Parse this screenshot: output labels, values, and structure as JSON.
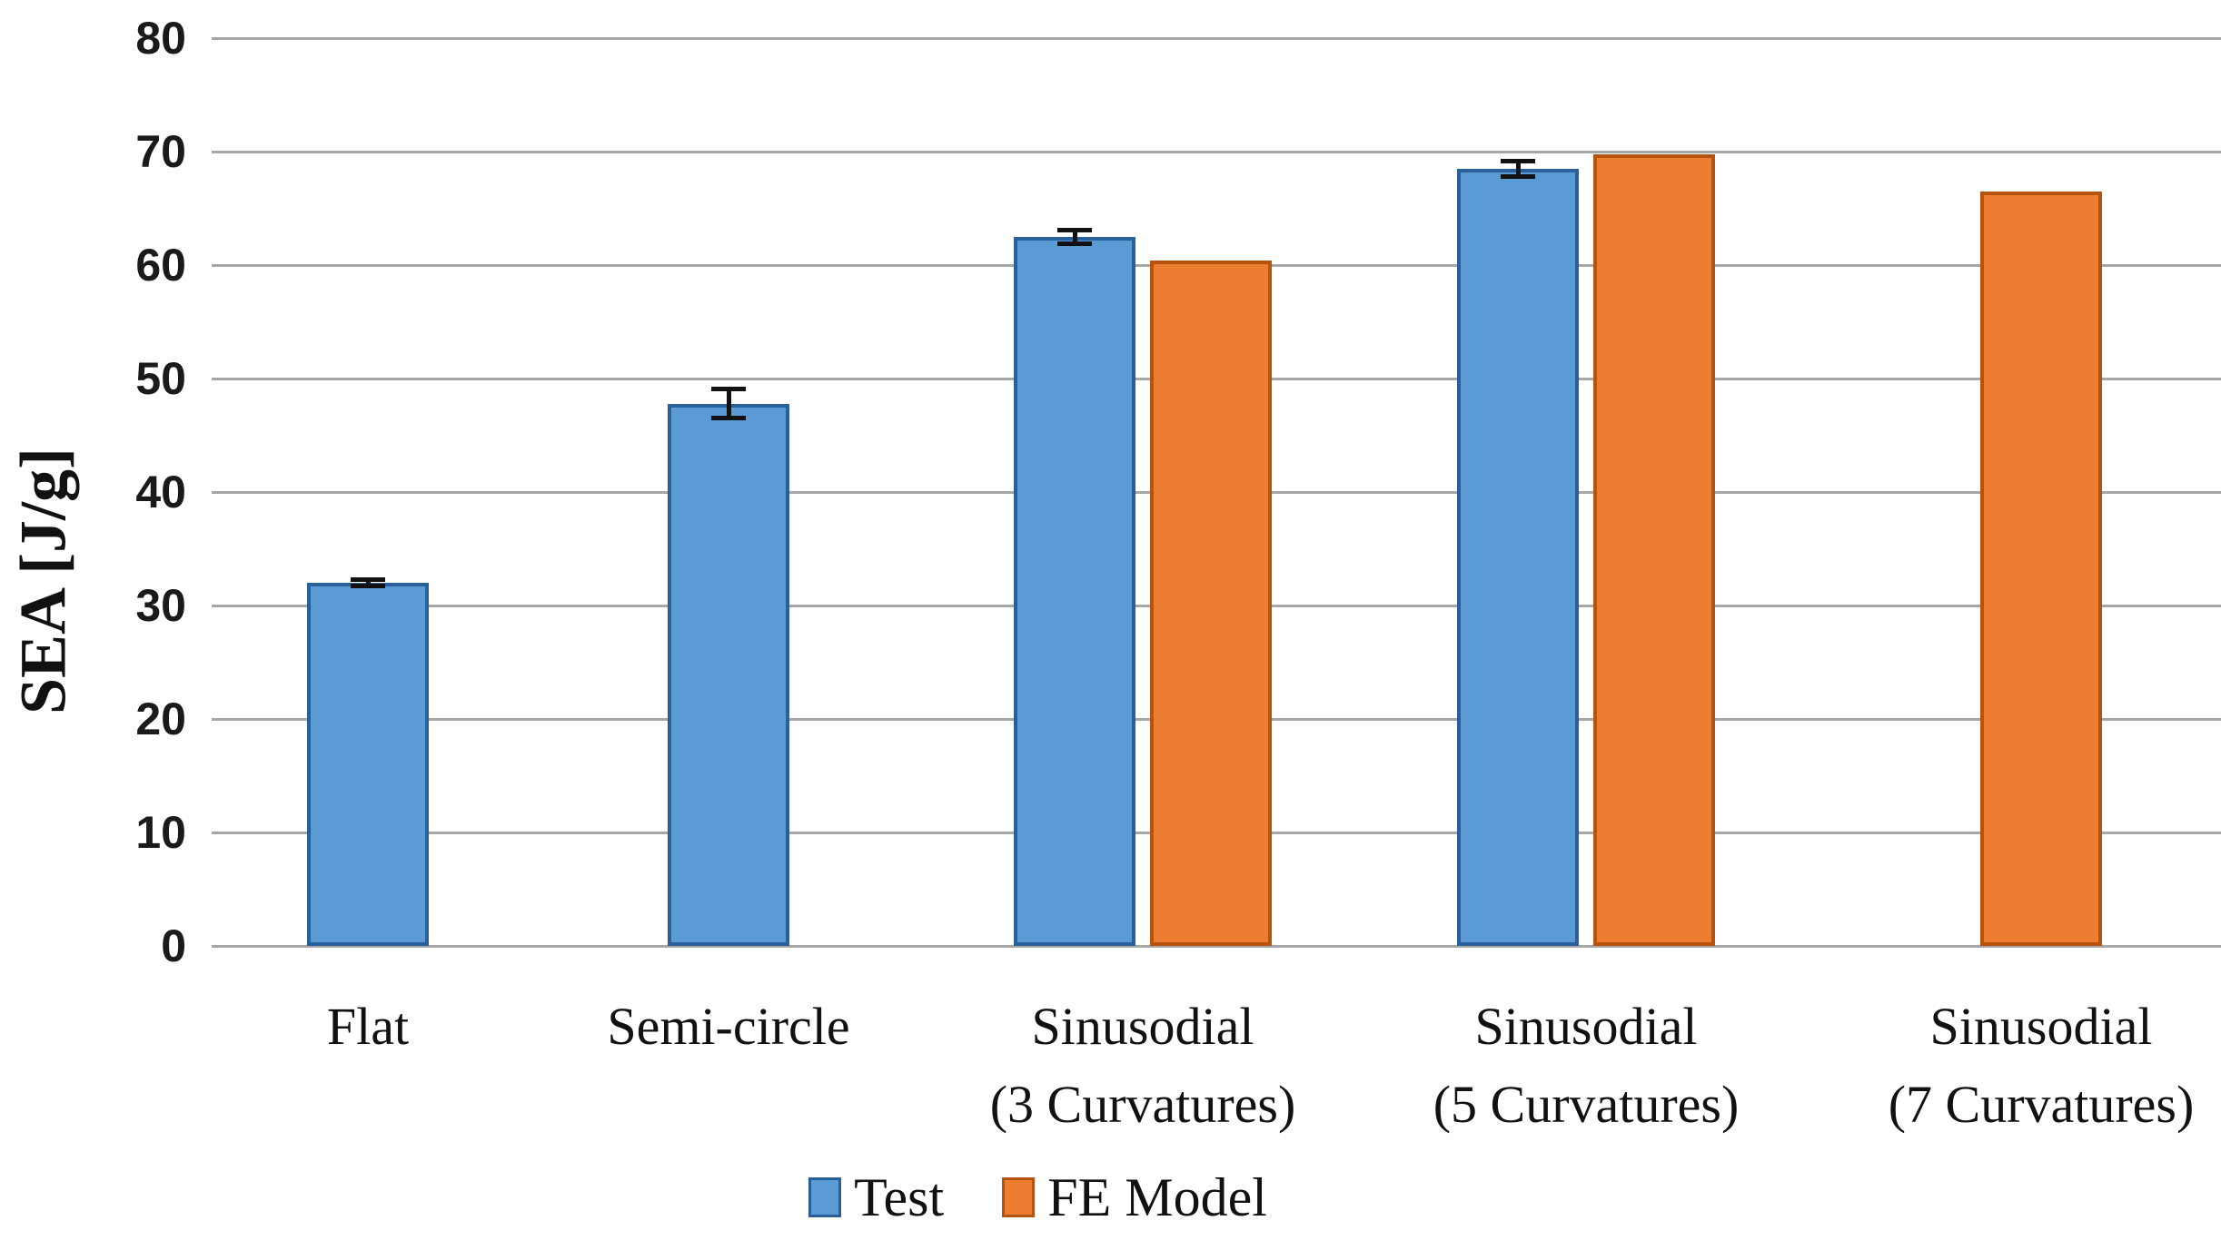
{
  "chart_data": {
    "type": "bar",
    "title": "",
    "xlabel": "",
    "ylabel": "SEA [J/g]",
    "ylim": [
      0,
      80
    ],
    "yticks": [
      0,
      10,
      20,
      30,
      40,
      50,
      60,
      70,
      80
    ],
    "grid": "horizontal-only",
    "gridline_color": "#A6A6A6",
    "legend_position": "bottom-center",
    "categories": [
      "Flat",
      "Semi-circle",
      "Sinusodial (3 Curvatures)",
      "Sinusodial (5 Curvatures)",
      "Sinusodial (7 Curvatures)"
    ],
    "category_label_lines": [
      [
        "Flat"
      ],
      [
        "Semi-circle"
      ],
      [
        "Sinusodial",
        "(3 Curvatures)"
      ],
      [
        "Sinusodial",
        "(5 Curvatures)"
      ],
      [
        "Sinusodial",
        "(7 Curvatures)"
      ]
    ],
    "series": [
      {
        "name": "Test",
        "color": "#5B9BD5",
        "border_color": "#2A6099",
        "values": [
          32,
          47.8,
          62.5,
          68.5,
          null
        ],
        "error_bars": [
          0.3,
          1.3,
          0.6,
          0.7,
          null
        ]
      },
      {
        "name": "FE Model",
        "color": "#ED7D31",
        "border_color": "#B5530F",
        "values": [
          null,
          null,
          60.4,
          69.8,
          66.5
        ],
        "error_bars": [
          null,
          null,
          null,
          null,
          null
        ]
      }
    ]
  }
}
